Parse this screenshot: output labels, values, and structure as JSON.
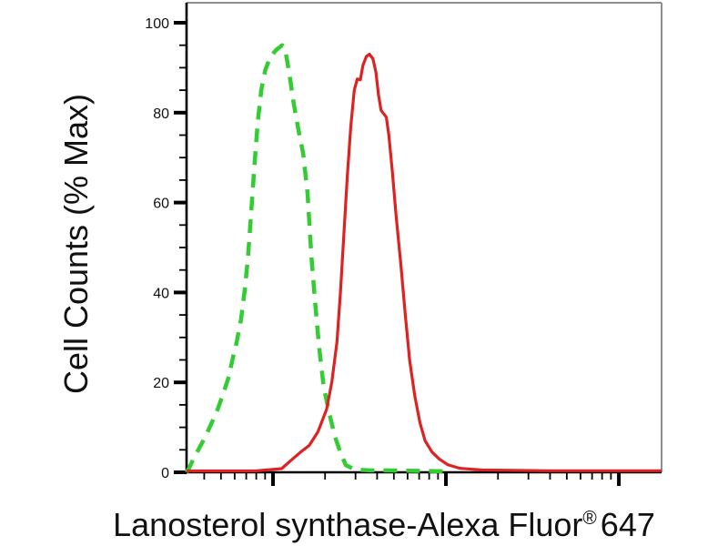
{
  "figure": {
    "y_label": "Cell Counts (% Max)",
    "x_label_main": "Lanosterol synthase-Alexa Fluor",
    "x_label_registered": "®",
    "x_label_suffix": "647"
  },
  "colors": {
    "background": "#ffffff",
    "axis": "#000000",
    "frame": "#8d8d8d",
    "green_series": "#33cc33",
    "red_series": "#dd2222",
    "text": "#111111"
  },
  "chart_data": {
    "type": "line",
    "subtype": "flow-cytometry-histogram-overlay",
    "title": "",
    "xlabel": "Lanosterol synthase-Alexa Fluor® 647",
    "ylabel": "Cell Counts (% Max)",
    "grid": false,
    "legend": "none",
    "x_axis": {
      "scale": "log10",
      "range_log10": [
        0.5,
        3.247
      ],
      "major_tick_positions_log10": [
        1,
        2,
        3
      ],
      "tick_labels_shown": false
    },
    "y_axis": {
      "range": [
        0,
        104.5
      ],
      "major_tick_step": 20,
      "minor_tick_step": 5,
      "tick_labels": [
        "0",
        "20",
        "40",
        "60",
        "80",
        "100"
      ]
    },
    "series": [
      {
        "name": "green-dashed-control",
        "style": "dashed",
        "color": "#33cc33",
        "stroke_width": 4.5,
        "dash_pattern": [
          15,
          10
        ],
        "peak": {
          "x_log10": 1.053,
          "y_pct": 95
        },
        "points": [
          [
            0.5,
            0
          ],
          [
            0.515,
            1
          ],
          [
            0.54,
            3
          ],
          [
            0.575,
            5.5
          ],
          [
            0.61,
            8
          ],
          [
            0.645,
            11
          ],
          [
            0.68,
            14
          ],
          [
            0.712,
            17.5
          ],
          [
            0.742,
            21
          ],
          [
            0.765,
            25
          ],
          [
            0.79,
            29
          ],
          [
            0.815,
            34
          ],
          [
            0.838,
            41
          ],
          [
            0.856,
            48
          ],
          [
            0.874,
            58
          ],
          [
            0.892,
            68
          ],
          [
            0.912,
            78
          ],
          [
            0.932,
            85
          ],
          [
            0.955,
            89.5
          ],
          [
            0.985,
            92.5
          ],
          [
            1.02,
            94
          ],
          [
            1.053,
            95
          ],
          [
            1.075,
            93
          ],
          [
            1.095,
            88.5
          ],
          [
            1.12,
            82
          ],
          [
            1.148,
            76
          ],
          [
            1.174,
            71
          ],
          [
            1.2,
            62
          ],
          [
            1.222,
            48
          ],
          [
            1.243,
            38
          ],
          [
            1.266,
            28
          ],
          [
            1.293,
            19
          ],
          [
            1.326,
            13
          ],
          [
            1.358,
            8
          ],
          [
            1.389,
            4.5
          ],
          [
            1.421,
            1.6
          ],
          [
            1.474,
            0.6
          ],
          [
            1.55,
            0.45
          ],
          [
            1.7,
            0.4
          ],
          [
            1.85,
            0.3
          ],
          [
            2.02,
            0.2
          ]
        ]
      },
      {
        "name": "red-solid-stained",
        "style": "solid",
        "color": "#dd2222",
        "stroke_width": 3.2,
        "dash_pattern": null,
        "peak": {
          "x_log10": 1.558,
          "y_pct": 93
        },
        "points": [
          [
            0.5,
            0.3
          ],
          [
            0.9,
            0.3
          ],
          [
            1.05,
            0.8
          ],
          [
            1.1,
            2.5
          ],
          [
            1.16,
            4.5
          ],
          [
            1.21,
            6
          ],
          [
            1.26,
            9
          ],
          [
            1.31,
            14
          ],
          [
            1.34,
            20
          ],
          [
            1.37,
            29
          ],
          [
            1.39,
            40
          ],
          [
            1.41,
            53
          ],
          [
            1.43,
            66
          ],
          [
            1.45,
            77
          ],
          [
            1.47,
            85
          ],
          [
            1.487,
            87.5
          ],
          [
            1.505,
            87.3
          ],
          [
            1.52,
            90.5
          ],
          [
            1.54,
            92.5
          ],
          [
            1.558,
            93
          ],
          [
            1.578,
            92
          ],
          [
            1.595,
            89
          ],
          [
            1.61,
            84
          ],
          [
            1.625,
            80.5
          ],
          [
            1.655,
            79
          ],
          [
            1.67,
            75
          ],
          [
            1.69,
            67
          ],
          [
            1.712,
            57
          ],
          [
            1.74,
            46
          ],
          [
            1.765,
            35
          ],
          [
            1.79,
            25
          ],
          [
            1.82,
            17
          ],
          [
            1.85,
            11
          ],
          [
            1.88,
            7
          ],
          [
            1.92,
            4.5
          ],
          [
            1.96,
            3
          ],
          [
            2.01,
            1.7
          ],
          [
            2.08,
            0.9
          ],
          [
            2.21,
            0.5
          ],
          [
            2.6,
            0.35
          ],
          [
            3.247,
            0.35
          ]
        ]
      }
    ]
  }
}
